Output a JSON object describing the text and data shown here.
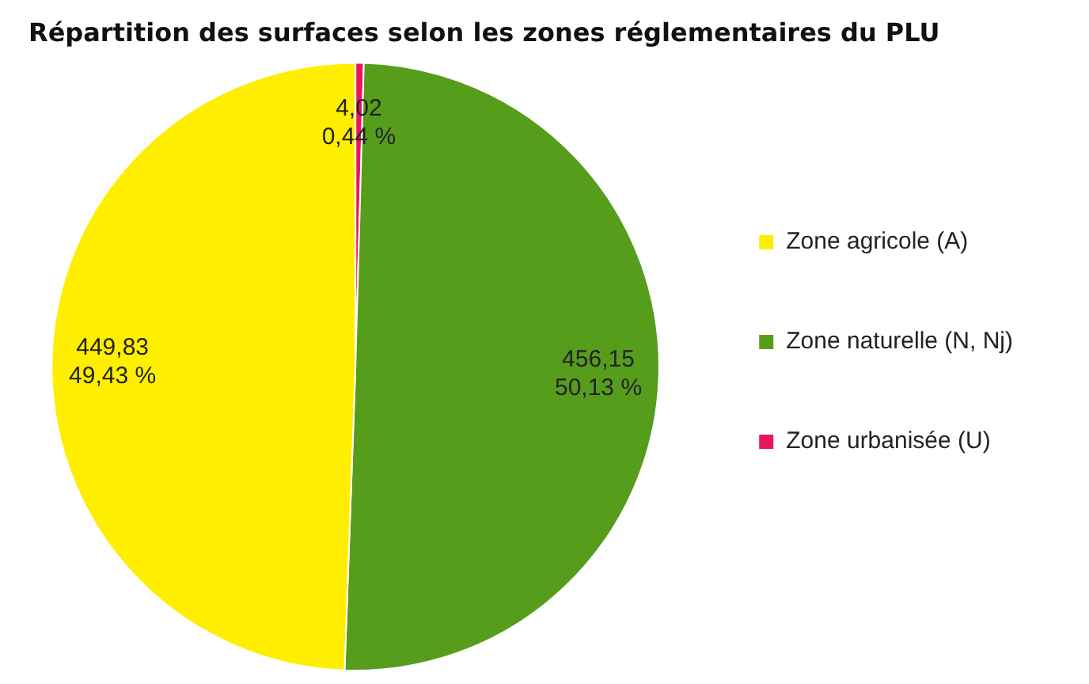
{
  "chart_data": {
    "type": "pie",
    "title": "Répartition des surfaces selon les zones réglementaires du PLU",
    "categories": [
      "Zone agricole (A)",
      "Zone naturelle (N, Nj)",
      "Zone urbanisée (U)"
    ],
    "values": [
      449.83,
      456.15,
      4.02
    ],
    "colors": [
      "#ffee00",
      "#579d1c",
      "#e8175d"
    ],
    "value_labels": [
      "449,83\n49,43 %",
      "456,15\n50,13 %",
      "4,02\n0,44 %"
    ],
    "legend": "right"
  }
}
